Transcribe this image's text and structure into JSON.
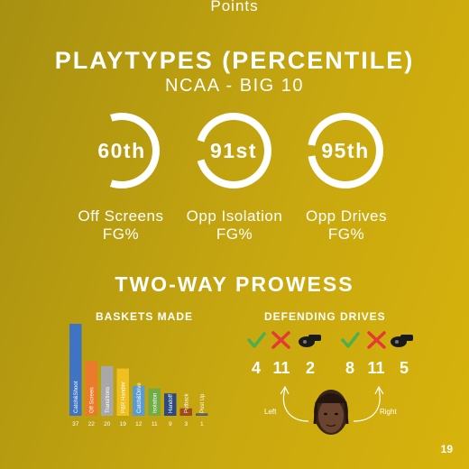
{
  "header": {
    "top_text": "Points"
  },
  "section": {
    "title": "PLAYTYPES (PERCENTILE)",
    "subtitle": "NCAA - BIG 10"
  },
  "percentiles": [
    {
      "value": "60th",
      "label_line1": "Off Screens",
      "label_line2": "FG%",
      "pct": 60
    },
    {
      "value": "91st",
      "label_line1": "Opp Isolation",
      "label_line2": "FG%",
      "pct": 91
    },
    {
      "value": "95th",
      "label_line1": "Opp Drives",
      "label_line2": "FG%",
      "pct": 95
    }
  ],
  "two_way": {
    "title": "TWO-WAY PROWESS"
  },
  "baskets": {
    "subtitle": "BASKETS MADE"
  },
  "defending": {
    "subtitle": "DEFENDING DRIVES",
    "left": {
      "made": "4",
      "missed": "11",
      "fouls": "2",
      "label": "Left"
    },
    "right": {
      "made": "8",
      "missed": "11",
      "fouls": "5",
      "label": "Right"
    },
    "icons": [
      "check-icon",
      "x-icon",
      "whistle-icon"
    ]
  },
  "colors": {
    "check": "#4caf50",
    "x": "#e53935",
    "ring": "#ffffff"
  },
  "page_number": "19",
  "chart_data": {
    "type": "bar",
    "categories": [
      "Catch&Shoot",
      "Off Screen",
      "Transitions",
      "P&R Handler",
      "Catch&Drive",
      "Isolation",
      "Handoff",
      "Putback",
      "Post Up"
    ],
    "values": [
      37,
      22,
      20,
      19,
      12,
      11,
      9,
      3,
      1
    ],
    "colors": [
      "#3f74c4",
      "#ea7b2a",
      "#a8a8a8",
      "#f0c020",
      "#5b9bd5",
      "#70ad47",
      "#2a4a80",
      "#9e4a1c",
      "#606060"
    ],
    "title": "BASKETS MADE",
    "ylim": [
      0,
      37
    ]
  }
}
